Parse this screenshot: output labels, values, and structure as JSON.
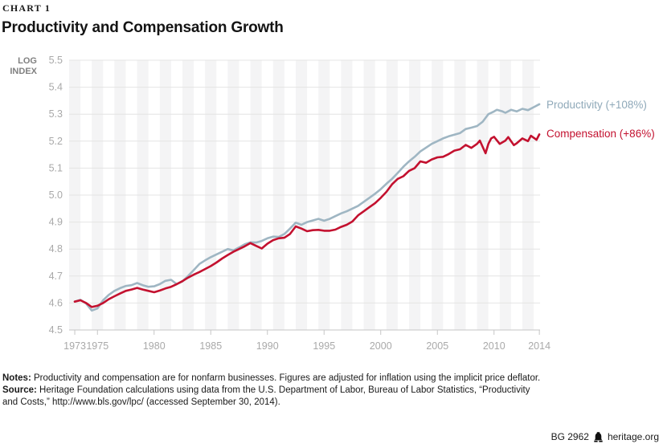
{
  "header": {
    "chart_label": "CHART 1",
    "title": "Productivity and Compensation Growth"
  },
  "y_axis_unit": {
    "line1": "LOG",
    "line2": "INDEX"
  },
  "chart_data": {
    "type": "line",
    "title": "Productivity and Compensation Growth",
    "ylabel": "LOG INDEX",
    "xlabel": "",
    "ylim": [
      4.5,
      5.5
    ],
    "yticks": [
      4.5,
      4.6,
      4.7,
      4.8,
      4.9,
      5.0,
      5.1,
      5.2,
      5.3,
      5.4,
      5.5
    ],
    "xticks": [
      1973,
      1975,
      1980,
      1985,
      1990,
      1995,
      2000,
      2005,
      2010,
      2014
    ],
    "xlim": [
      1972.5,
      2014.1
    ],
    "grid": "horizontal",
    "background": "alternating vertical year bands",
    "legend_position": "right of line ends",
    "colors": {
      "band": "#f4f4f5",
      "gridline": "#e4e4e4",
      "axis": "#c6c6c6",
      "tick_text": "#a9a9a9"
    },
    "series": [
      {
        "name": "Productivity",
        "label": "Productivity (+108%)",
        "color": "#9fb6c3",
        "label_color": "#8fa9b9",
        "x": [
          1973,
          1973.5,
          1974,
          1974.5,
          1975,
          1975.5,
          1976,
          1976.5,
          1977,
          1977.5,
          1978,
          1978.5,
          1979,
          1979.5,
          1980,
          1980.5,
          1981,
          1981.5,
          1982,
          1982.5,
          1983,
          1983.5,
          1984,
          1984.5,
          1985,
          1985.5,
          1986,
          1986.5,
          1987,
          1987.5,
          1988,
          1988.5,
          1989,
          1989.5,
          1990,
          1990.5,
          1991,
          1991.5,
          1992,
          1992.5,
          1993,
          1993.5,
          1994,
          1994.5,
          1995,
          1995.5,
          1996,
          1996.5,
          1997,
          1997.5,
          1998,
          1998.5,
          1999,
          1999.5,
          2000,
          2000.5,
          2001,
          2001.5,
          2002,
          2002.5,
          2003,
          2003.5,
          2004,
          2004.5,
          2005,
          2005.5,
          2006,
          2006.5,
          2007,
          2007.5,
          2008,
          2008.5,
          2009,
          2009.5,
          2010,
          2010.25,
          2010.75,
          2011,
          2011.5,
          2012,
          2012.5,
          2013,
          2013.5,
          2014
        ],
        "y": [
          4.605,
          4.612,
          4.598,
          4.572,
          4.58,
          4.61,
          4.63,
          4.645,
          4.655,
          4.663,
          4.666,
          4.674,
          4.666,
          4.66,
          4.662,
          4.67,
          4.682,
          4.686,
          4.67,
          4.68,
          4.7,
          4.722,
          4.745,
          4.758,
          4.77,
          4.78,
          4.79,
          4.8,
          4.795,
          4.806,
          4.818,
          4.825,
          4.824,
          4.83,
          4.84,
          4.846,
          4.845,
          4.856,
          4.876,
          4.898,
          4.89,
          4.9,
          4.906,
          4.912,
          4.905,
          4.912,
          4.922,
          4.932,
          4.94,
          4.95,
          4.96,
          4.975,
          4.99,
          5.005,
          5.022,
          5.042,
          5.06,
          5.082,
          5.105,
          5.125,
          5.142,
          5.162,
          5.176,
          5.19,
          5.2,
          5.21,
          5.218,
          5.224,
          5.23,
          5.245,
          5.25,
          5.256,
          5.272,
          5.3,
          5.31,
          5.316,
          5.31,
          5.305,
          5.316,
          5.31,
          5.32,
          5.315,
          5.326,
          5.337
        ]
      },
      {
        "name": "Compensation",
        "label": "Compensation (+86%)",
        "color": "#c3112f",
        "label_color": "#c3112f",
        "x": [
          1973,
          1973.5,
          1974,
          1974.5,
          1975,
          1975.5,
          1976,
          1976.5,
          1977,
          1977.5,
          1978,
          1978.5,
          1979,
          1979.5,
          1980,
          1980.5,
          1981,
          1981.5,
          1982,
          1982.5,
          1983,
          1983.5,
          1984,
          1984.5,
          1985,
          1985.5,
          1986,
          1986.5,
          1987,
          1987.5,
          1988,
          1988.5,
          1989,
          1989.5,
          1990,
          1990.5,
          1991,
          1991.5,
          1992,
          1992.5,
          1993,
          1993.5,
          1994,
          1994.5,
          1995,
          1995.5,
          1996,
          1996.5,
          1997,
          1997.5,
          1998,
          1998.5,
          1999,
          1999.5,
          2000,
          2000.5,
          2001,
          2001.5,
          2002,
          2002.5,
          2003,
          2003.5,
          2004,
          2004.5,
          2005,
          2005.5,
          2006,
          2006.5,
          2007,
          2007.5,
          2008,
          2008.5,
          2008.75,
          2009.25,
          2009.5,
          2009.75,
          2010,
          2010.5,
          2011,
          2011.25,
          2011.75,
          2012,
          2012.5,
          2013,
          2013.25,
          2013.75,
          2014
        ],
        "y": [
          4.605,
          4.61,
          4.6,
          4.585,
          4.59,
          4.6,
          4.614,
          4.625,
          4.635,
          4.645,
          4.65,
          4.656,
          4.65,
          4.645,
          4.64,
          4.646,
          4.654,
          4.66,
          4.67,
          4.681,
          4.694,
          4.705,
          4.715,
          4.726,
          4.737,
          4.75,
          4.765,
          4.778,
          4.79,
          4.8,
          4.81,
          4.822,
          4.812,
          4.802,
          4.82,
          4.833,
          4.84,
          4.842,
          4.856,
          4.884,
          4.876,
          4.866,
          4.87,
          4.871,
          4.868,
          4.868,
          4.872,
          4.882,
          4.89,
          4.902,
          4.925,
          4.94,
          4.955,
          4.97,
          4.99,
          5.012,
          5.04,
          5.06,
          5.07,
          5.09,
          5.1,
          5.125,
          5.12,
          5.132,
          5.14,
          5.142,
          5.152,
          5.165,
          5.17,
          5.186,
          5.175,
          5.19,
          5.202,
          5.155,
          5.19,
          5.21,
          5.216,
          5.19,
          5.202,
          5.215,
          5.185,
          5.192,
          5.21,
          5.2,
          5.22,
          5.205,
          5.225
        ]
      }
    ]
  },
  "notes": {
    "notes_label": "Notes:",
    "notes_text": "Productivity and compensation are for nonfarm businesses. Figures are adjusted for inflation using the implicit price deflator.",
    "source_label": "Source:",
    "source_line1": "Heritage Foundation calculations using data from the U.S. Department of Labor, Bureau of Labor Statistics, “Productivity",
    "source_line2": "and Costs,” http://www.bls.gov/lpc/ (accessed September 30, 2014)."
  },
  "footer": {
    "doc_id": "BG 2962",
    "site": "heritage.org"
  }
}
